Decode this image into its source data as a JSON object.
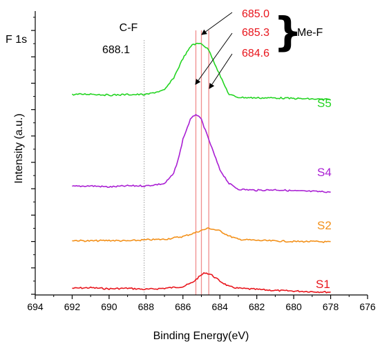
{
  "chart_data": {
    "type": "line",
    "title": "F 1s",
    "xlabel": "Binding Energy(eV)",
    "ylabel": "Intensity (a.u.)",
    "x_reversed": true,
    "xlim": [
      694,
      676
    ],
    "x_ticks": [
      "694",
      "692",
      "690",
      "688",
      "686",
      "684",
      "682",
      "680",
      "678",
      "676"
    ],
    "y_ticks_labeled": false,
    "grid": false,
    "series": [
      {
        "name": "S1",
        "color": "#e8141b",
        "label_color": "#e8141b",
        "points": [
          [
            692.0,
            0.02
          ],
          [
            691.0,
            0.03
          ],
          [
            690.0,
            0.01
          ],
          [
            689.0,
            0.02
          ],
          [
            688.0,
            0.0
          ],
          [
            687.0,
            0.02
          ],
          [
            686.0,
            0.05
          ],
          [
            685.5,
            0.12
          ],
          [
            685.0,
            0.26
          ],
          [
            684.8,
            0.3
          ],
          [
            684.5,
            0.27
          ],
          [
            684.0,
            0.15
          ],
          [
            683.5,
            0.05
          ],
          [
            683.0,
            0.02
          ],
          [
            682.0,
            0.0
          ],
          [
            681.0,
            -0.02
          ],
          [
            680.0,
            -0.03
          ],
          [
            679.0,
            -0.04
          ],
          [
            678.0,
            -0.05
          ]
        ]
      },
      {
        "name": "S2",
        "color": "#f39019",
        "label_color": "#f39019",
        "points": [
          [
            692.0,
            0.88
          ],
          [
            691.0,
            0.87
          ],
          [
            690.0,
            0.88
          ],
          [
            689.0,
            0.87
          ],
          [
            688.0,
            0.89
          ],
          [
            687.0,
            0.9
          ],
          [
            686.0,
            0.95
          ],
          [
            685.5,
            1.0
          ],
          [
            685.0,
            1.06
          ],
          [
            684.6,
            1.1
          ],
          [
            684.0,
            1.05
          ],
          [
            683.5,
            0.96
          ],
          [
            683.0,
            0.9
          ],
          [
            682.0,
            0.88
          ],
          [
            681.0,
            0.87
          ],
          [
            680.0,
            0.86
          ],
          [
            679.0,
            0.86
          ],
          [
            678.0,
            0.85
          ]
        ]
      },
      {
        "name": "S4",
        "color": "#a91ed3",
        "label_color": "#a91ed3",
        "points": [
          [
            692.0,
            1.85
          ],
          [
            691.0,
            1.86
          ],
          [
            690.0,
            1.84
          ],
          [
            689.0,
            1.86
          ],
          [
            688.0,
            1.86
          ],
          [
            687.0,
            1.9
          ],
          [
            686.5,
            2.08
          ],
          [
            686.2,
            2.4
          ],
          [
            686.0,
            2.7
          ],
          [
            685.6,
            3.05
          ],
          [
            685.3,
            3.15
          ],
          [
            685.0,
            3.05
          ],
          [
            684.5,
            2.6
          ],
          [
            684.0,
            2.15
          ],
          [
            683.5,
            1.9
          ],
          [
            683.0,
            1.8
          ],
          [
            682.0,
            1.78
          ],
          [
            681.0,
            1.79
          ],
          [
            680.0,
            1.77
          ],
          [
            679.0,
            1.76
          ],
          [
            678.0,
            1.75
          ]
        ]
      },
      {
        "name": "S5",
        "color": "#23d421",
        "label_color": "#23d421",
        "points": [
          [
            692.0,
            3.5
          ],
          [
            691.0,
            3.51
          ],
          [
            690.0,
            3.49
          ],
          [
            689.0,
            3.5
          ],
          [
            688.0,
            3.5
          ],
          [
            687.0,
            3.58
          ],
          [
            686.5,
            3.8
          ],
          [
            686.0,
            4.15
          ],
          [
            685.5,
            4.4
          ],
          [
            685.0,
            4.42
          ],
          [
            684.6,
            4.3
          ],
          [
            684.2,
            4.0
          ],
          [
            683.8,
            3.7
          ],
          [
            683.5,
            3.5
          ],
          [
            683.0,
            3.45
          ],
          [
            682.0,
            3.44
          ],
          [
            681.0,
            3.44
          ],
          [
            680.0,
            3.43
          ],
          [
            679.0,
            3.42
          ],
          [
            678.0,
            3.41
          ]
        ]
      }
    ],
    "reference_lines": [
      {
        "x": 688.1,
        "style": "dotted",
        "color": "#999999"
      },
      {
        "x": 685.3,
        "style": "solid",
        "color": "#f08c8c"
      },
      {
        "x": 685.0,
        "style": "solid",
        "color": "#f08c8c"
      },
      {
        "x": 684.6,
        "style": "solid",
        "color": "#f08c8c"
      }
    ],
    "annotations": {
      "cf_label": "C-F",
      "cf_value": "688.1",
      "peak_1": "685.0",
      "peak_2": "685.3",
      "peak_3": "684.6",
      "group_brace": "}",
      "group_label": "Me-F",
      "peak_color": "#e8141b"
    }
  }
}
